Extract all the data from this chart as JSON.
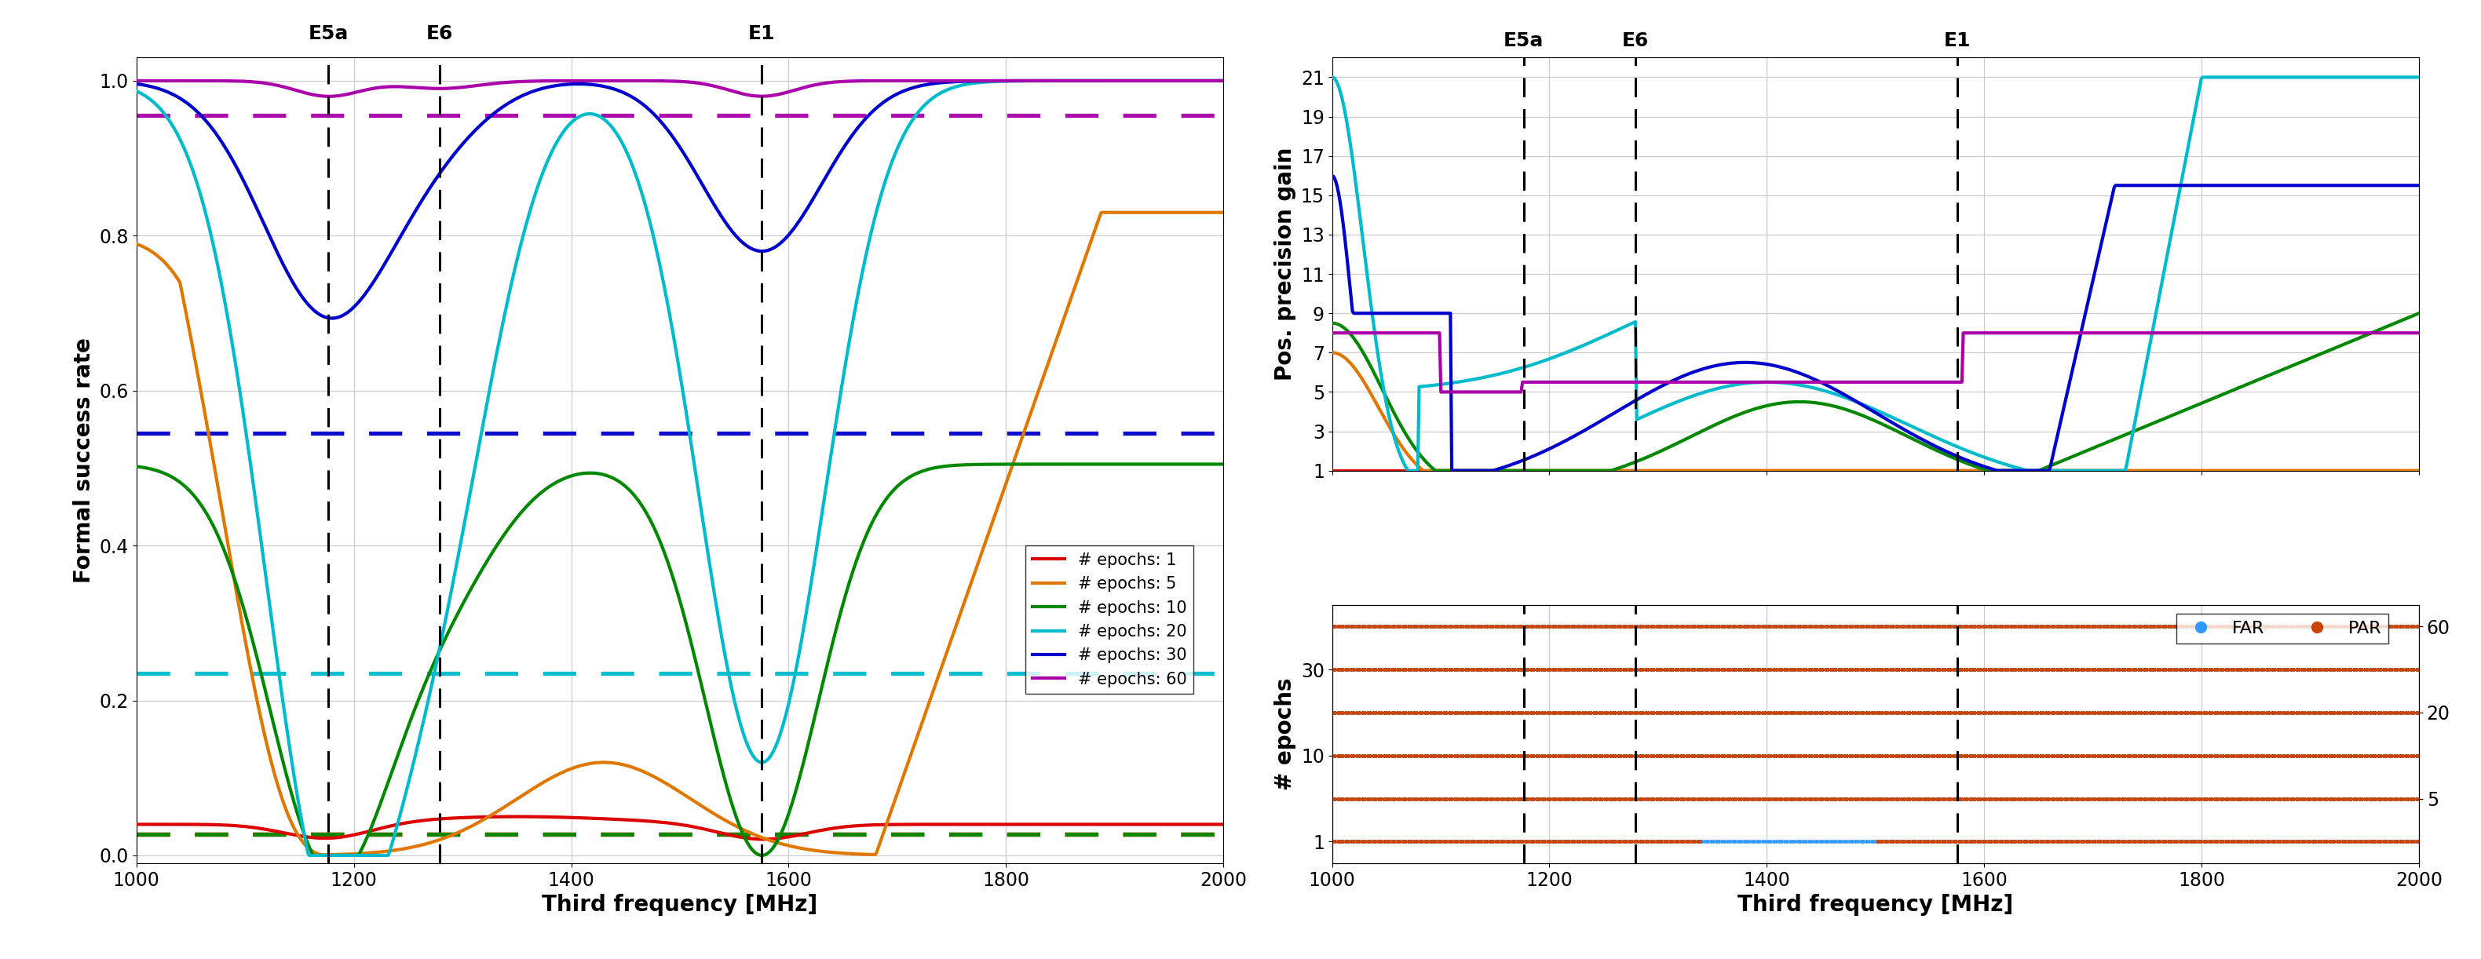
{
  "freq_range": [
    1000,
    2000
  ],
  "vlines": {
    "E5a": 1176.45,
    "E6": 1278.75,
    "E1": 1575.42
  },
  "epochs": [
    1,
    5,
    10,
    20,
    30,
    60
  ],
  "colors": {
    "1": "#dd0000",
    "5": "#e07800",
    "10": "#008800",
    "20": "#00bbcc",
    "30": "#0000cc",
    "60": "#aa00aa"
  },
  "dashed_levels": {
    "1": 0.027,
    "5": 0.027,
    "10": 0.027,
    "20": 0.235,
    "30": 0.545,
    "60": 0.955
  },
  "left_ylabel": "Formal success rate",
  "right_top_ylabel": "Pos. precision gain",
  "right_bottom_ylabel": "# epochs",
  "xlabel": "Third frequency [MHz]",
  "right_top_yticks": [
    1,
    3,
    5,
    7,
    9,
    11,
    13,
    15,
    17,
    19,
    21
  ],
  "FAR_color": "#3399ff",
  "PAR_color": "#cc4400",
  "background_color": "#ffffff",
  "grid_color": "#cccccc"
}
